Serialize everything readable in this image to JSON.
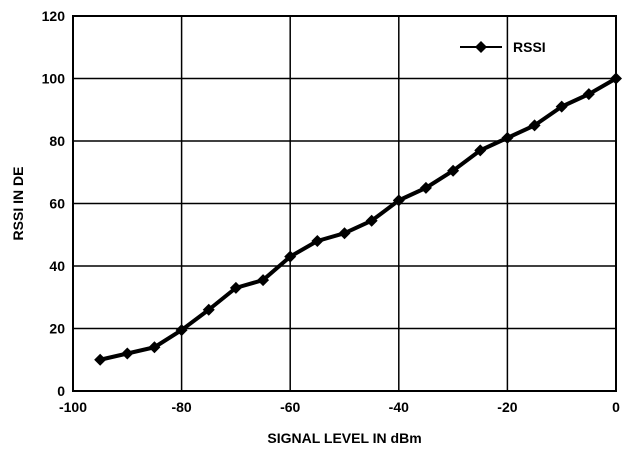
{
  "chart_data": {
    "type": "line",
    "title": "",
    "xlabel": "SIGNAL LEVEL IN dBm",
    "ylabel": "RSSI IN DE",
    "xlim": [
      -100,
      0
    ],
    "ylim": [
      0,
      120
    ],
    "xticks": [
      -100,
      -80,
      -60,
      -40,
      -20,
      0
    ],
    "yticks": [
      0,
      20,
      40,
      60,
      80,
      100,
      120
    ],
    "grid": true,
    "legend_position": "top-right",
    "series": [
      {
        "name": "RSSI",
        "color": "#000000",
        "marker": "diamond",
        "x": [
          -95,
          -90,
          -85,
          -80,
          -75,
          -70,
          -65,
          -60,
          -55,
          -50,
          -45,
          -40,
          -35,
          -30,
          -25,
          -20,
          -15,
          -10,
          -5,
          0
        ],
        "y": [
          10,
          12,
          14,
          19.5,
          26,
          33,
          35.5,
          43,
          48,
          50.5,
          54.5,
          61,
          65,
          70.5,
          77,
          81,
          85,
          91,
          95,
          100
        ]
      }
    ]
  }
}
